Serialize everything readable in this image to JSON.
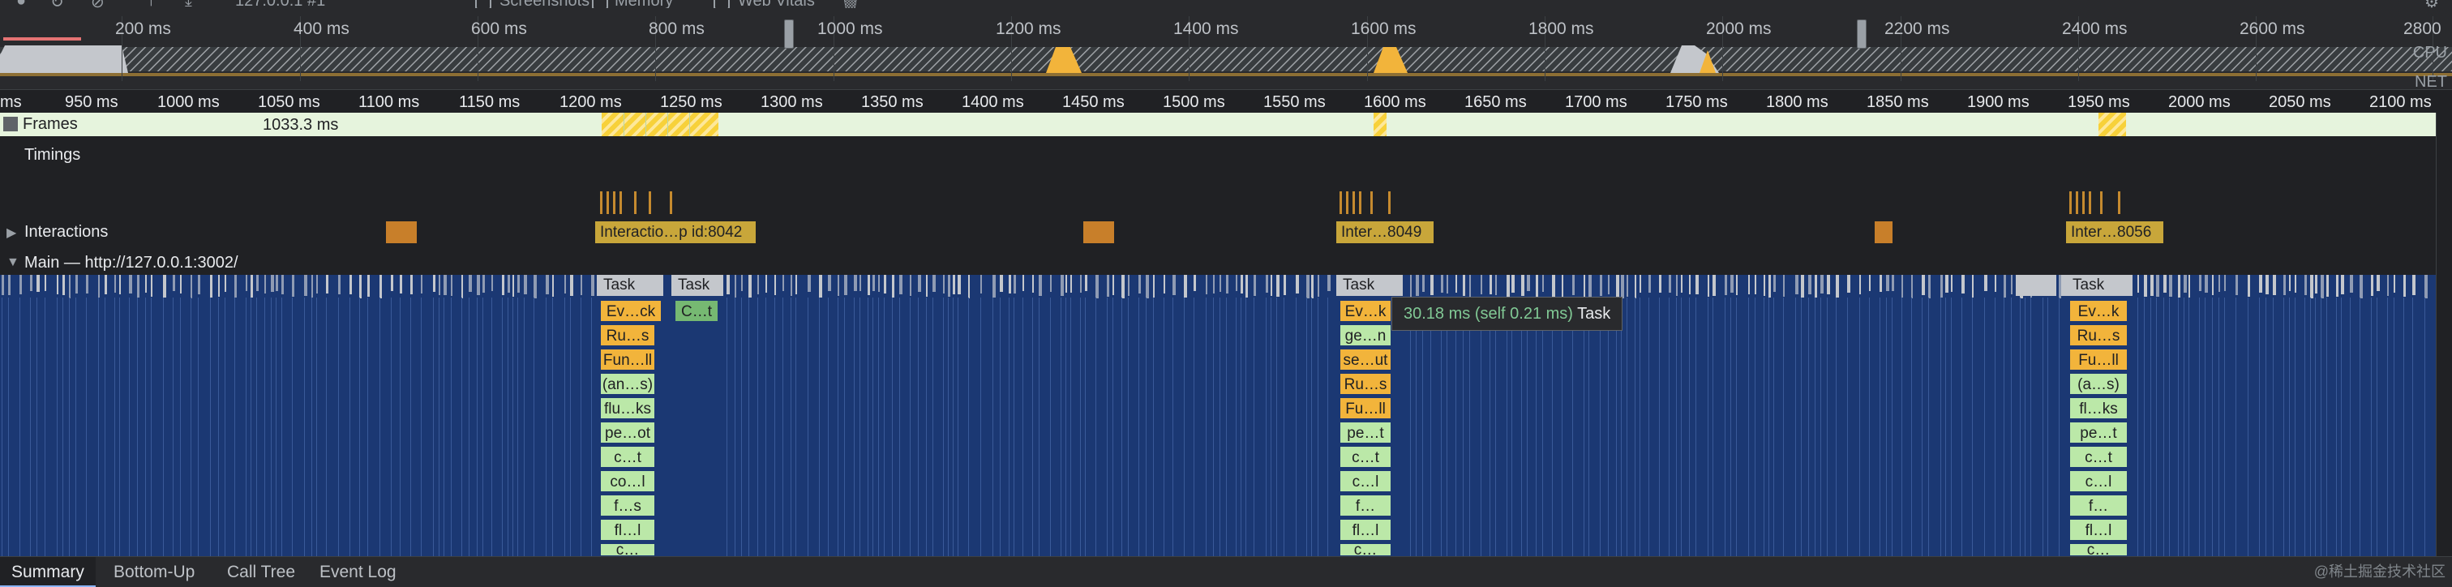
{
  "toolbar": {
    "origin": "127.0.0.1 #1",
    "screenshots_label": "Screenshots",
    "memory_label": "Memory",
    "web_vitals_label": "Web Vitals"
  },
  "overview": {
    "ticks": [
      "200 ms",
      "400 ms",
      "600 ms",
      "800 ms",
      "1000 ms",
      "1200 ms",
      "1400 ms",
      "1600 ms",
      "1800 ms",
      "2000 ms",
      "2200 ms",
      "2400 ms",
      "2600 ms",
      "2800"
    ],
    "cpu_label": "CPU",
    "net_label": "NET"
  },
  "ruler": {
    "ticks": [
      "ms",
      "950 ms",
      "1000 ms",
      "1050 ms",
      "1100 ms",
      "1150 ms",
      "1200 ms",
      "1250 ms",
      "1300 ms",
      "1350 ms",
      "1400 ms",
      "1450 ms",
      "1500 ms",
      "1550 ms",
      "1600 ms",
      "1650 ms",
      "1700 ms",
      "1750 ms",
      "1800 ms",
      "1850 ms",
      "1900 ms",
      "1950 ms",
      "2000 ms",
      "2050 ms",
      "2100 ms"
    ]
  },
  "tracks": {
    "frames_label": "Frames",
    "frames_time": "1033.3 ms",
    "timings_label": "Timings",
    "interactions_label": "Interactions",
    "main_label": "Main — http://127.0.0.1:3002/"
  },
  "interactions": [
    {
      "label": ""
    },
    {
      "label": "Interactio…p id:8042"
    },
    {
      "label": ""
    },
    {
      "label": "Inter…8049"
    },
    {
      "label": ""
    },
    {
      "label": "Inter…8056"
    }
  ],
  "flame": {
    "task_label": "Task",
    "col1": [
      "Ev…ck",
      "Ru…s",
      "Fun…ll",
      "(an…s)",
      "flu…ks",
      "pe…ot",
      "c…t",
      "co…l",
      "f…s",
      "fl…l",
      "c…"
    ],
    "col2": [
      "C…t"
    ],
    "col3": [
      "Ev…k",
      "ge…n",
      "se…ut",
      "Ru…s",
      "Fu…ll",
      "pe…t",
      "c…t",
      "c…l",
      "f…",
      "fl…l",
      "c…"
    ],
    "col4": [
      "Ev…k",
      "Ru…s",
      "Fu…ll",
      "(a…s)",
      "fl…ks",
      "pe…t",
      "c…t",
      "c…l",
      "f…",
      "fl…l",
      "c…"
    ]
  },
  "tooltip": {
    "duration": "30.18 ms (self 0.21 ms)",
    "name": "Task"
  },
  "tabs": [
    "Summary",
    "Bottom-Up",
    "Call Tree",
    "Event Log"
  ],
  "watermark": "@稀土掘金技术社区",
  "colors": {
    "flame_bg": "#1b3873",
    "task": "#c4c7cc",
    "event": "#f2b43b",
    "paint": "#bbe8a8",
    "interaction": "#c8a63a"
  }
}
